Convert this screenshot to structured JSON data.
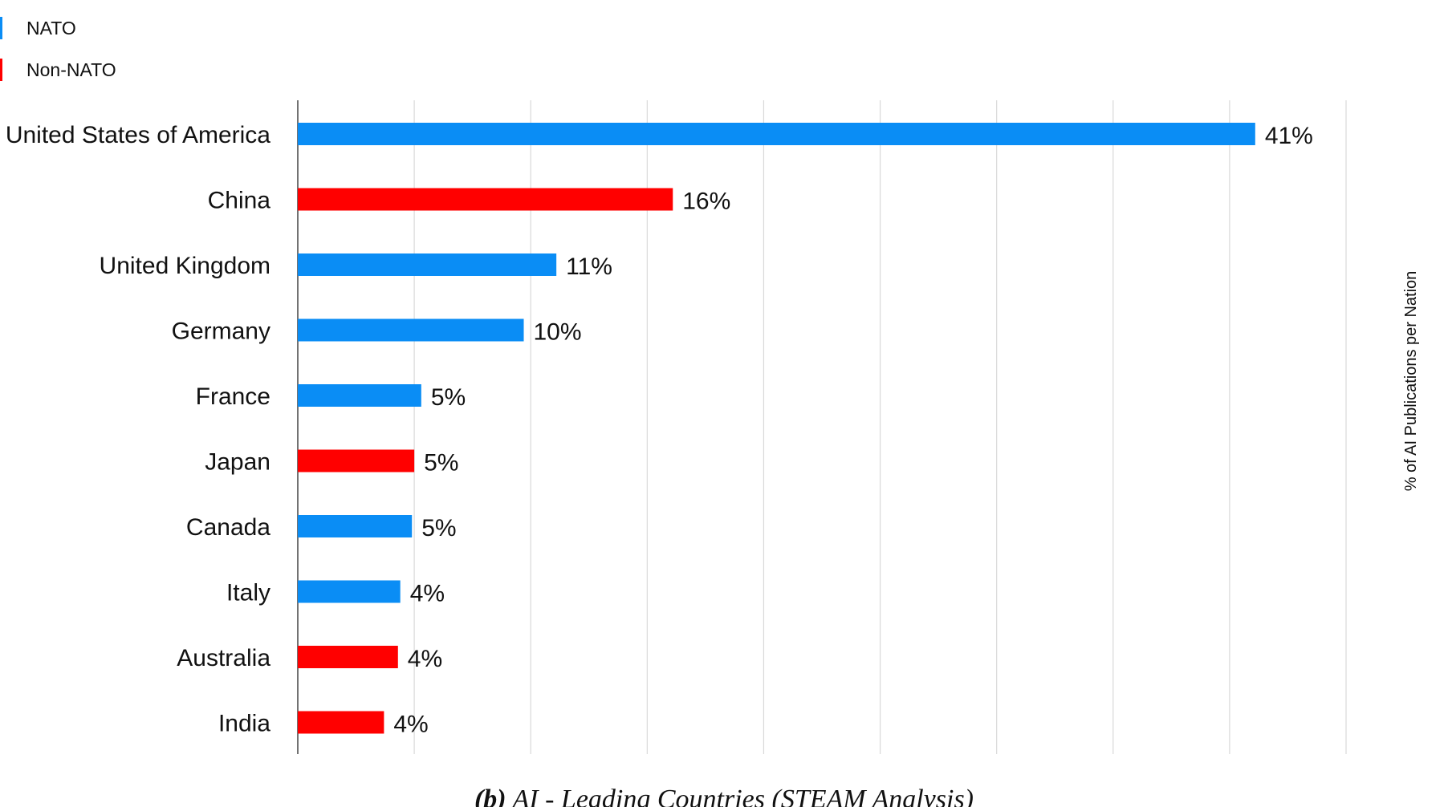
{
  "chart_data": {
    "type": "bar",
    "orientation": "horizontal",
    "title": "",
    "xlabel": "",
    "ylabel": "% of AI Publications per Nation",
    "xlim": [
      0,
      45
    ],
    "grid": true,
    "legend": [
      {
        "name": "NATO",
        "color": "#0a8df5"
      },
      {
        "name": "Non-NATO",
        "color": "#ff0000"
      }
    ],
    "legend_position": "top-left",
    "categories": [
      "United States of America",
      "China",
      "United Kingdom",
      "Germany",
      "France",
      "Japan",
      "Canada",
      "Italy",
      "Australia",
      "India"
    ],
    "values": [
      41.1,
      16.1,
      11.1,
      9.7,
      5.3,
      5.0,
      4.9,
      4.4,
      4.3,
      3.7
    ],
    "labels": [
      "41%",
      "16%",
      "11%",
      "10%",
      "5%",
      "5%",
      "5%",
      "4%",
      "4%",
      "4%"
    ],
    "groups": [
      "NATO",
      "Non-NATO",
      "NATO",
      "NATO",
      "NATO",
      "Non-NATO",
      "NATO",
      "NATO",
      "Non-NATO",
      "Non-NATO"
    ]
  },
  "caption": {
    "prefix": "(b)",
    "text": " AI - Leading Countries (STEAM Analysis)"
  }
}
